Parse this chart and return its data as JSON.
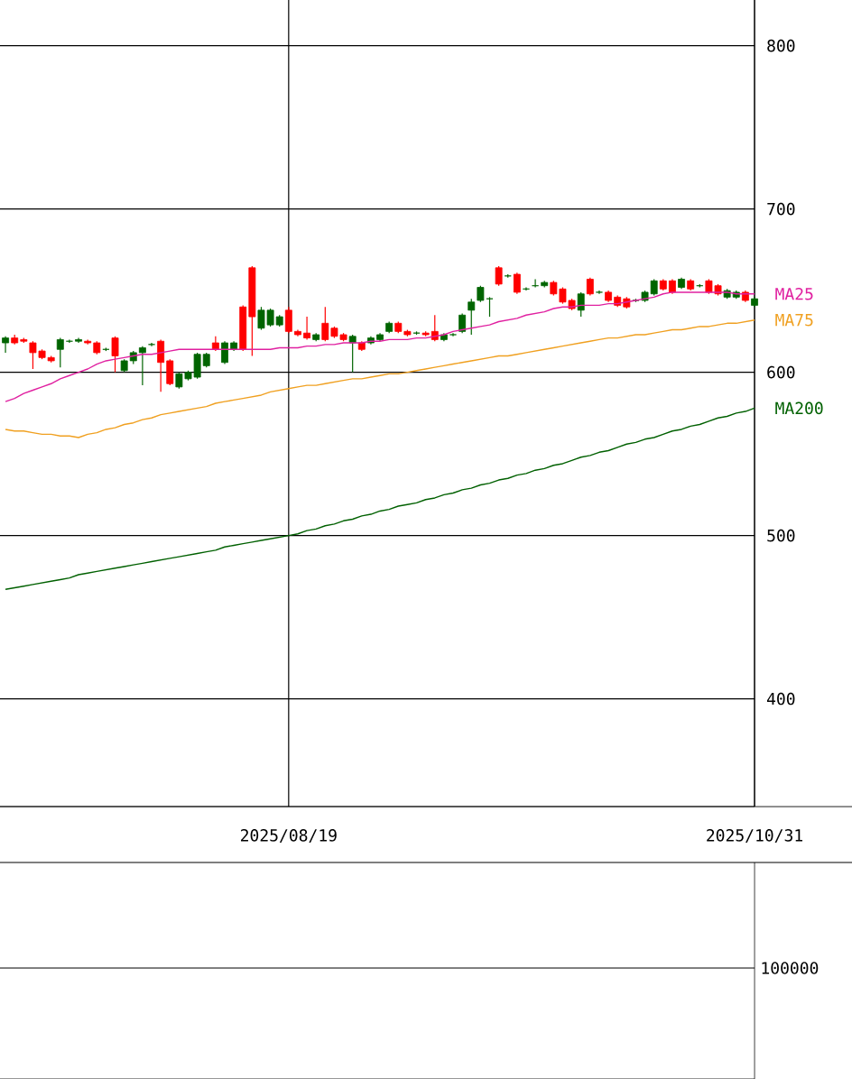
{
  "chart_data": [
    {
      "type": "candlestick",
      "categories": [
        null,
        null,
        null,
        null,
        null,
        null,
        null,
        null,
        null,
        null,
        null,
        null,
        null,
        null,
        null,
        null,
        null,
        null,
        null,
        null,
        null,
        null,
        null,
        null,
        null,
        null,
        null,
        null,
        null,
        null,
        null,
        "2025/08/19",
        null,
        null,
        null,
        null,
        null,
        null,
        null,
        null,
        null,
        null,
        null,
        null,
        null,
        null,
        null,
        null,
        null,
        null,
        null,
        null,
        null,
        null,
        null,
        null,
        null,
        null,
        null,
        null,
        null,
        null,
        null,
        null,
        null,
        null,
        null,
        null,
        null,
        null,
        null,
        null,
        null,
        null,
        null,
        null,
        null,
        null,
        null,
        null,
        null,
        null,
        "2025/10/31"
      ],
      "ohlc": [
        [
          621,
          622,
          612,
          618
        ],
        [
          618,
          623,
          617,
          621
        ],
        [
          619,
          621,
          618,
          620
        ],
        [
          612,
          619,
          602,
          618
        ],
        [
          609,
          614,
          608,
          613
        ],
        [
          607,
          610,
          606,
          609
        ],
        [
          620,
          621,
          603,
          614
        ],
        [
          619,
          620,
          618,
          619
        ],
        [
          620,
          621,
          618,
          619
        ],
        [
          618,
          620,
          617,
          619
        ],
        [
          612,
          619,
          611,
          618
        ],
        [
          614,
          615,
          613,
          614
        ],
        [
          610,
          622,
          600,
          621
        ],
        [
          607,
          608,
          600,
          601
        ],
        [
          612,
          613,
          605,
          607
        ],
        [
          615,
          616,
          592,
          612
        ],
        [
          617,
          618,
          616,
          617
        ],
        [
          606,
          620,
          588,
          619
        ],
        [
          593,
          608,
          592,
          607
        ],
        [
          599,
          600,
          590,
          591
        ],
        [
          600,
          601,
          595,
          596
        ],
        [
          611,
          612,
          596,
          597
        ],
        [
          611,
          612,
          603,
          604
        ],
        [
          614,
          622,
          613,
          618
        ],
        [
          618,
          619,
          605,
          606
        ],
        [
          618,
          619,
          613,
          614
        ],
        [
          614,
          641,
          613,
          640
        ],
        [
          634,
          665,
          610,
          664
        ],
        [
          638,
          640,
          626,
          627
        ],
        [
          638,
          639,
          628,
          629
        ],
        [
          634,
          635,
          628,
          629
        ],
        [
          625,
          640,
          624,
          638
        ],
        [
          623,
          626,
          622,
          625
        ],
        [
          621,
          634,
          620,
          624
        ],
        [
          623,
          624,
          619,
          620
        ],
        [
          620,
          640,
          619,
          630
        ],
        [
          622,
          628,
          621,
          627
        ],
        [
          620,
          624,
          619,
          623
        ],
        [
          622,
          623,
          600,
          618
        ],
        [
          614,
          619,
          613,
          618
        ],
        [
          621,
          622,
          617,
          618
        ],
        [
          623,
          624,
          619,
          620
        ],
        [
          630,
          631,
          624,
          625
        ],
        [
          625,
          631,
          624,
          630
        ],
        [
          623,
          626,
          622,
          625
        ],
        [
          624,
          625,
          623,
          624
        ],
        [
          623,
          625,
          622,
          624
        ],
        [
          620,
          635,
          619,
          625
        ],
        [
          623,
          624,
          619,
          620
        ],
        [
          623,
          624,
          622,
          623
        ],
        [
          635,
          636,
          624,
          625
        ],
        [
          643,
          645,
          623,
          638
        ],
        [
          652,
          653,
          643,
          644
        ],
        [
          645,
          646,
          634,
          645
        ],
        [
          654,
          665,
          653,
          664
        ],
        [
          659,
          660,
          658,
          659
        ],
        [
          649,
          661,
          648,
          660
        ],
        [
          651,
          652,
          650,
          651
        ],
        [
          653,
          657,
          652,
          653
        ],
        [
          655,
          656,
          652,
          653
        ],
        [
          648,
          656,
          647,
          655
        ],
        [
          643,
          652,
          642,
          651
        ],
        [
          639,
          645,
          638,
          644
        ],
        [
          648,
          649,
          634,
          638
        ],
        [
          648,
          658,
          647,
          657
        ],
        [
          649,
          650,
          648,
          649
        ],
        [
          644,
          650,
          643,
          649
        ],
        [
          641,
          647,
          640,
          646
        ],
        [
          640,
          646,
          639,
          645
        ],
        [
          644,
          645,
          643,
          644
        ],
        [
          649,
          650,
          643,
          644
        ],
        [
          656,
          657,
          647,
          648
        ],
        [
          651,
          657,
          650,
          656
        ],
        [
          649,
          657,
          648,
          656
        ],
        [
          657,
          658,
          651,
          652
        ],
        [
          651,
          657,
          650,
          656
        ],
        [
          653,
          654,
          652,
          653
        ],
        [
          649,
          657,
          648,
          656
        ],
        [
          648,
          654,
          647,
          653
        ],
        [
          650,
          651,
          645,
          646
        ],
        [
          649,
          650,
          645,
          646
        ],
        [
          644,
          650,
          643,
          649
        ],
        [
          645,
          646,
          640,
          641
        ]
      ],
      "colors": [
        "#006400",
        "#ff0000",
        "#ff0000",
        "#ff0000",
        "#ff0000",
        "#ff0000",
        "#006400",
        "#006400",
        "#006400",
        "#ff0000",
        "#ff0000",
        "#006400",
        "#ff0000",
        "#006400",
        "#006400",
        "#006400",
        "#006400",
        "#ff0000",
        "#ff0000",
        "#006400",
        "#006400",
        "#006400",
        "#006400",
        "#ff0000",
        "#006400",
        "#006400",
        "#ff0000",
        "#ff0000",
        "#006400",
        "#006400",
        "#006400",
        "#ff0000",
        "#ff0000",
        "#ff0000",
        "#006400",
        "#ff0000",
        "#ff0000",
        "#ff0000",
        "#006400",
        "#ff0000",
        "#006400",
        "#006400",
        "#006400",
        "#ff0000",
        "#ff0000",
        "#006400",
        "#ff0000",
        "#ff0000",
        "#006400",
        "#006400",
        "#006400",
        "#006400",
        "#006400",
        "#006400",
        "#ff0000",
        "#006400",
        "#ff0000",
        "#006400",
        "#006400",
        "#006400",
        "#ff0000",
        "#ff0000",
        "#ff0000",
        "#006400",
        "#ff0000",
        "#006400",
        "#ff0000",
        "#ff0000",
        "#ff0000",
        "#006400",
        "#006400",
        "#006400",
        "#ff0000",
        "#ff0000",
        "#006400",
        "#ff0000",
        "#006400",
        "#ff0000",
        "#ff0000",
        "#006400",
        "#006400",
        "#ff0000",
        "#006400"
      ],
      "series": [
        {
          "type": "line",
          "name": "MA25",
          "color": "#e020a0",
          "values": [
            582,
            584,
            587,
            589,
            591,
            593,
            596,
            598,
            600,
            602,
            605,
            607,
            608,
            609,
            610,
            611,
            611,
            612,
            613,
            614,
            614,
            614,
            614,
            614,
            614,
            614,
            614,
            614,
            614,
            614,
            615,
            615,
            615,
            616,
            616,
            617,
            617,
            618,
            618,
            618,
            619,
            619,
            620,
            620,
            620,
            621,
            621,
            622,
            623,
            625,
            626,
            627,
            628,
            629,
            631,
            632,
            633,
            635,
            636,
            637,
            639,
            640,
            640,
            641,
            641,
            641,
            642,
            642,
            643,
            644,
            645,
            646,
            648,
            649,
            649,
            649,
            649,
            649,
            649,
            649,
            648,
            648,
            648
          ]
        },
        {
          "type": "line",
          "name": "MA75",
          "color": "#f0a020",
          "values": [
            565,
            564,
            564,
            563,
            562,
            562,
            561,
            561,
            560,
            562,
            563,
            565,
            566,
            568,
            569,
            571,
            572,
            574,
            575,
            576,
            577,
            578,
            579,
            581,
            582,
            583,
            584,
            585,
            586,
            588,
            589,
            590,
            591,
            592,
            592,
            593,
            594,
            595,
            596,
            596,
            597,
            598,
            599,
            599,
            600,
            601,
            602,
            603,
            604,
            605,
            606,
            607,
            608,
            609,
            610,
            610,
            611,
            612,
            613,
            614,
            615,
            616,
            617,
            618,
            619,
            620,
            621,
            621,
            622,
            623,
            623,
            624,
            625,
            626,
            626,
            627,
            628,
            628,
            629,
            630,
            630,
            631,
            632
          ]
        },
        {
          "type": "line",
          "name": "MA200",
          "color": "#006000",
          "values": [
            467,
            468,
            469,
            470,
            471,
            472,
            473,
            474,
            476,
            477,
            478,
            479,
            480,
            481,
            482,
            483,
            484,
            485,
            486,
            487,
            488,
            489,
            490,
            491,
            493,
            494,
            495,
            496,
            497,
            498,
            499,
            500,
            501,
            503,
            504,
            506,
            507,
            509,
            510,
            512,
            513,
            515,
            516,
            518,
            519,
            520,
            522,
            523,
            525,
            526,
            528,
            529,
            531,
            532,
            534,
            535,
            537,
            538,
            540,
            541,
            543,
            544,
            546,
            548,
            549,
            551,
            552,
            554,
            556,
            557,
            559,
            560,
            562,
            564,
            565,
            567,
            568,
            570,
            572,
            573,
            575,
            576,
            578
          ]
        }
      ],
      "ylim": [
        334,
        828
      ],
      "yticks": [
        400,
        500,
        600,
        700,
        800
      ],
      "grid": true
    },
    {
      "type": "other",
      "categories": [
        null,
        null,
        null,
        null,
        null,
        null,
        null,
        null,
        null,
        null,
        null,
        null,
        null,
        null,
        null,
        null,
        null,
        null,
        null,
        null,
        null,
        null,
        null,
        null,
        null,
        null,
        null,
        null,
        null,
        null,
        null,
        null,
        null,
        null,
        null,
        null,
        null,
        null,
        null,
        null,
        null,
        null,
        null,
        null,
        null,
        null,
        null,
        null,
        null,
        null,
        null,
        null,
        null,
        null,
        null,
        null,
        null,
        null,
        null,
        null,
        null,
        null,
        null,
        null,
        null,
        null,
        null,
        null,
        null,
        null,
        null,
        null,
        null,
        null,
        null,
        null,
        null,
        null,
        null,
        null,
        null,
        null,
        null
      ],
      "annotations": [
        "100000"
      ]
    }
  ]
}
